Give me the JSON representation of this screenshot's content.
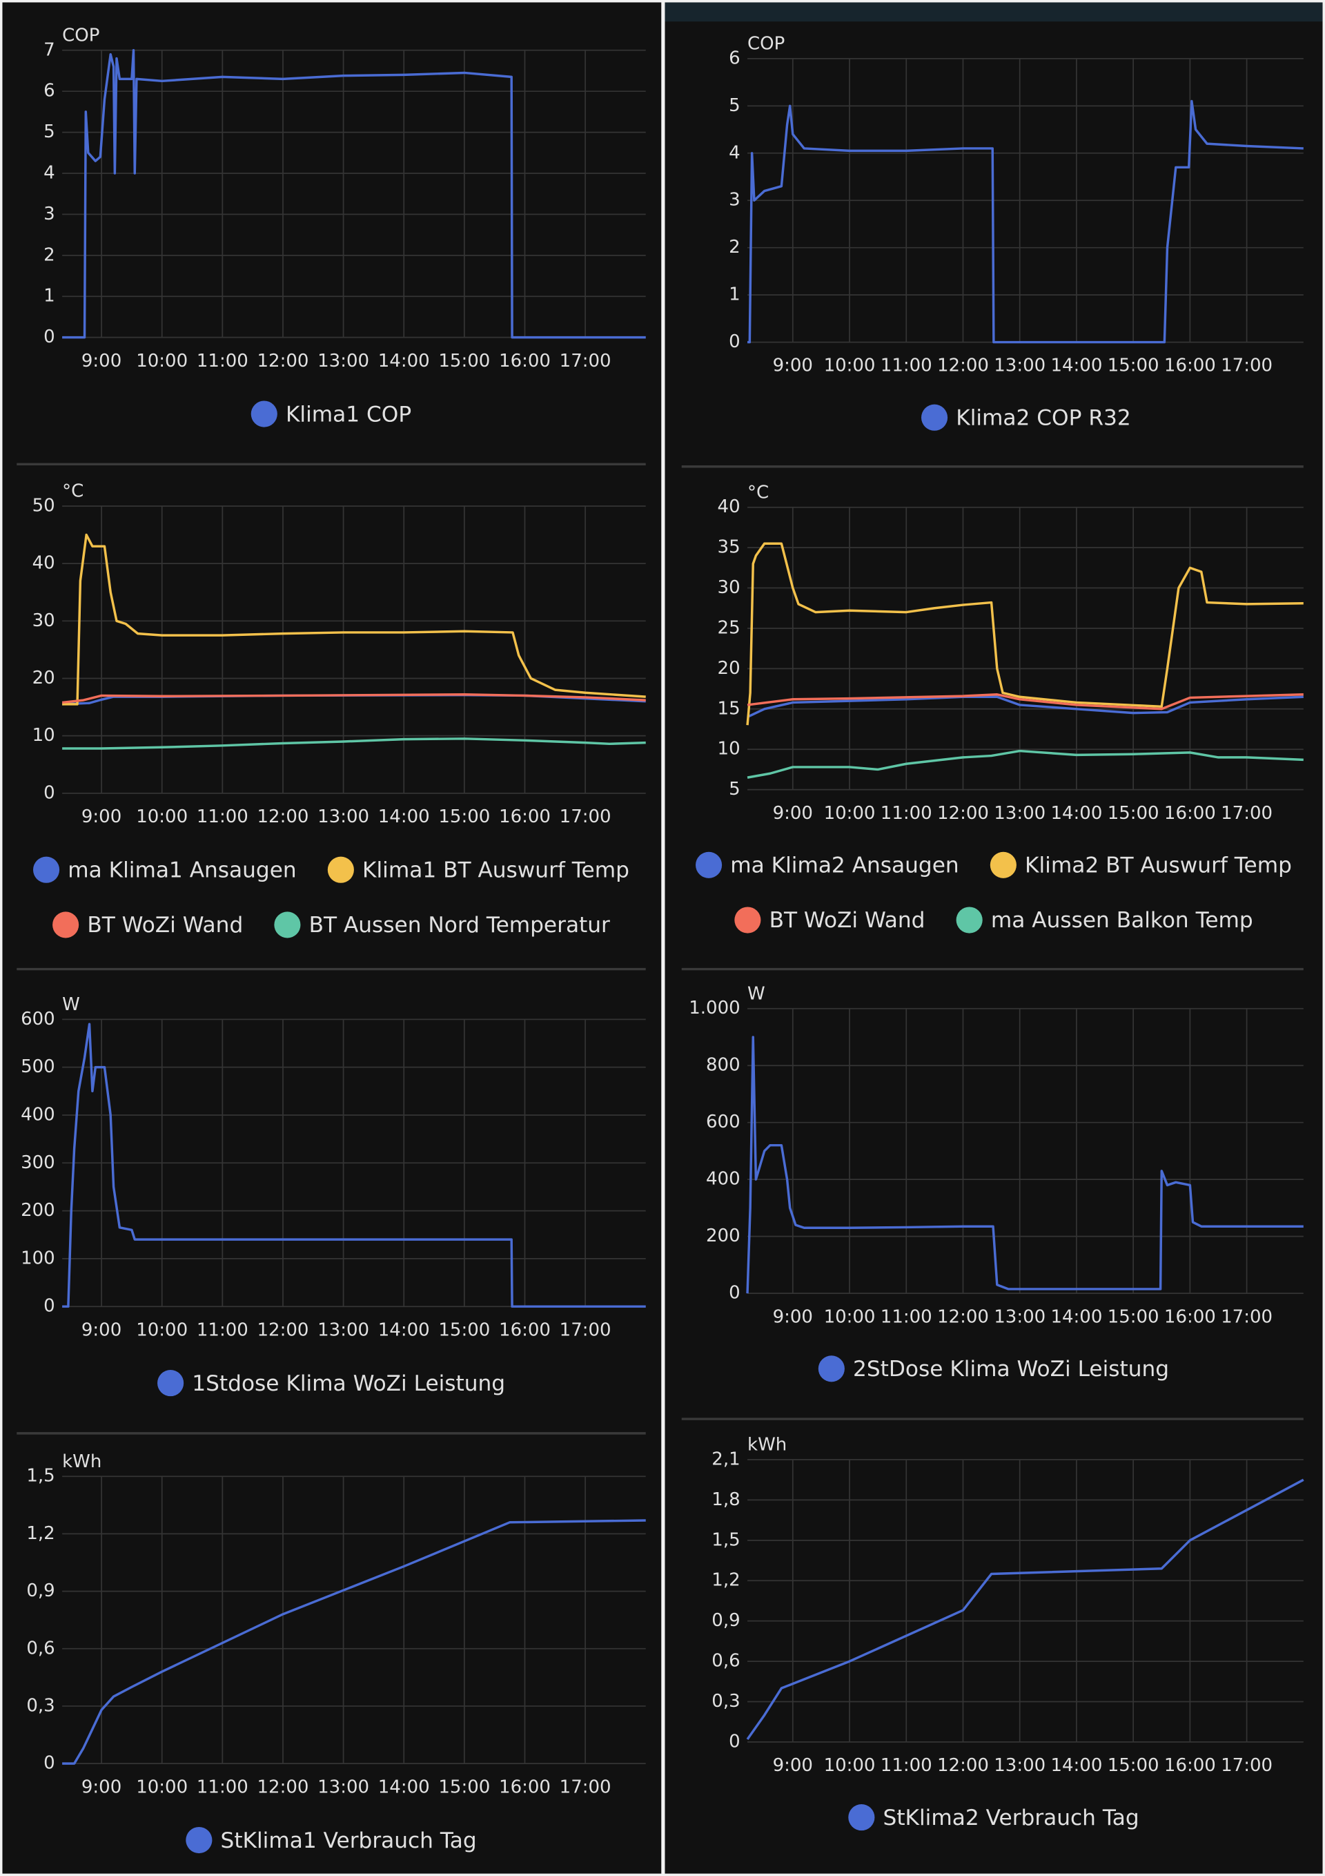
{
  "chart_data": [
    {
      "type": "line",
      "ylabel": "COP",
      "grid": true,
      "xlim": [
        8.35,
        18.0
      ],
      "ylim": [
        0,
        7
      ],
      "xticks": [
        {
          "value": 9,
          "label": "9:00"
        },
        {
          "value": 10,
          "label": "10:00"
        },
        {
          "value": 11,
          "label": "11:00"
        },
        {
          "value": 12,
          "label": "12:00"
        },
        {
          "value": 13,
          "label": "13:00"
        },
        {
          "value": 14,
          "label": "14:00"
        },
        {
          "value": 15,
          "label": "15:00"
        },
        {
          "value": 16,
          "label": "16:00"
        },
        {
          "value": 17,
          "label": "17:00"
        }
      ],
      "yticks": [
        0,
        1,
        2,
        3,
        4,
        5,
        6,
        7
      ],
      "series": [
        {
          "name": "Klima1 COP",
          "color": "#4a6cd4",
          "x": [
            8.35,
            8.72,
            8.74,
            8.78,
            8.9,
            8.98,
            9.05,
            9.15,
            9.2,
            9.22,
            9.25,
            9.3,
            9.5,
            9.53,
            9.55,
            9.58,
            10,
            11,
            12,
            13,
            14,
            15,
            15.78,
            15.79,
            18
          ],
          "values": [
            0,
            0,
            5.5,
            4.5,
            4.3,
            4.4,
            5.8,
            6.9,
            6.6,
            4.0,
            6.8,
            6.3,
            6.3,
            7.0,
            4.0,
            6.3,
            6.25,
            6.35,
            6.3,
            6.38,
            6.4,
            6.45,
            6.35,
            0,
            0
          ]
        }
      ]
    },
    {
      "type": "line",
      "ylabel": "COP",
      "grid": true,
      "xlim": [
        8.2,
        18.0
      ],
      "ylim": [
        0,
        6
      ],
      "xticks": [
        {
          "value": 9,
          "label": "9:00"
        },
        {
          "value": 10,
          "label": "10:00"
        },
        {
          "value": 11,
          "label": "11:00"
        },
        {
          "value": 12,
          "label": "12:00"
        },
        {
          "value": 13,
          "label": "13:00"
        },
        {
          "value": 14,
          "label": "14:00"
        },
        {
          "value": 15,
          "label": "15:00"
        },
        {
          "value": 16,
          "label": "16:00"
        },
        {
          "value": 17,
          "label": "17:00"
        }
      ],
      "yticks": [
        0,
        1,
        2,
        3,
        4,
        5,
        6
      ],
      "series": [
        {
          "name": "Klima2 COP R32",
          "color": "#4a6cd4",
          "x": [
            8.2,
            8.24,
            8.28,
            8.32,
            8.5,
            8.8,
            8.9,
            8.95,
            9.0,
            9.2,
            10,
            11,
            12,
            12.52,
            12.54,
            15.55,
            15.6,
            15.75,
            15.98,
            16.03,
            16.1,
            16.3,
            17,
            18
          ],
          "values": [
            0,
            0,
            4.0,
            3.0,
            3.2,
            3.3,
            4.6,
            5.0,
            4.4,
            4.1,
            4.05,
            4.05,
            4.1,
            4.1,
            0,
            0,
            2.0,
            3.7,
            3.7,
            5.1,
            4.5,
            4.2,
            4.15,
            4.1
          ]
        }
      ]
    },
    {
      "type": "line",
      "ylabel": "°C",
      "grid": true,
      "xlim": [
        8.35,
        18.0
      ],
      "ylim": [
        0,
        50
      ],
      "xticks": [
        {
          "value": 9,
          "label": "9:00"
        },
        {
          "value": 10,
          "label": "10:00"
        },
        {
          "value": 11,
          "label": "11:00"
        },
        {
          "value": 12,
          "label": "12:00"
        },
        {
          "value": 13,
          "label": "13:00"
        },
        {
          "value": 14,
          "label": "14:00"
        },
        {
          "value": 15,
          "label": "15:00"
        },
        {
          "value": 16,
          "label": "16:00"
        },
        {
          "value": 17,
          "label": "17:00"
        }
      ],
      "yticks": [
        0,
        10,
        20,
        30,
        40,
        50
      ],
      "series": [
        {
          "name": "ma Klima1 Ansaugen",
          "color": "#4a6cd4",
          "x": [
            8.35,
            8.8,
            9.0,
            9.2,
            10,
            12,
            15,
            16,
            17,
            18
          ],
          "values": [
            15.5,
            15.7,
            16.3,
            16.8,
            16.8,
            17,
            17.1,
            17,
            16.5,
            16
          ]
        },
        {
          "name": "Klima1 BT Auswurf Temp",
          "color": "#f3c14b",
          "x": [
            8.35,
            8.6,
            8.65,
            8.75,
            8.85,
            9.05,
            9.15,
            9.25,
            9.4,
            9.6,
            10,
            11,
            12,
            13,
            14,
            15,
            15.8,
            15.9,
            16.1,
            16.5,
            17,
            18
          ],
          "values": [
            15.5,
            15.5,
            37,
            45,
            43,
            43,
            35,
            30,
            29.5,
            27.8,
            27.5,
            27.5,
            27.8,
            28,
            28,
            28.2,
            28,
            24,
            20,
            18,
            17.5,
            16.8
          ]
        },
        {
          "name": "BT WoZi Wand",
          "color": "#f26e5a",
          "x": [
            8.35,
            8.7,
            9,
            10,
            12,
            15,
            16,
            17,
            18
          ],
          "values": [
            15.8,
            16.2,
            17,
            16.9,
            17,
            17.2,
            17,
            16.7,
            16.2
          ]
        },
        {
          "name": "BT Aussen Nord Temperatur",
          "color": "#5fc6a6",
          "x": [
            8.35,
            9,
            10,
            11,
            12,
            13,
            14,
            15,
            16,
            17,
            17.4,
            18
          ],
          "values": [
            7.8,
            7.8,
            8,
            8.3,
            8.7,
            9,
            9.4,
            9.5,
            9.2,
            8.8,
            8.6,
            8.8
          ]
        }
      ]
    },
    {
      "type": "line",
      "ylabel": "°C",
      "grid": true,
      "xlim": [
        8.2,
        18.0
      ],
      "ylim": [
        5,
        40
      ],
      "xticks": [
        {
          "value": 9,
          "label": "9:00"
        },
        {
          "value": 10,
          "label": "10:00"
        },
        {
          "value": 11,
          "label": "11:00"
        },
        {
          "value": 12,
          "label": "12:00"
        },
        {
          "value": 13,
          "label": "13:00"
        },
        {
          "value": 14,
          "label": "14:00"
        },
        {
          "value": 15,
          "label": "15:00"
        },
        {
          "value": 16,
          "label": "16:00"
        },
        {
          "value": 17,
          "label": "17:00"
        }
      ],
      "yticks": [
        5,
        10,
        15,
        20,
        25,
        30,
        35,
        40
      ],
      "series": [
        {
          "name": "ma Klima2 Ansaugen",
          "color": "#4a6cd4",
          "x": [
            8.2,
            8.5,
            9,
            10,
            11,
            12,
            12.6,
            13,
            14,
            15,
            15.6,
            16,
            17,
            18
          ],
          "values": [
            14,
            15,
            15.8,
            16,
            16.2,
            16.5,
            16.5,
            15.5,
            15,
            14.5,
            14.6,
            15.8,
            16.2,
            16.5
          ]
        },
        {
          "name": "Klima2 BT Auswurf Temp",
          "color": "#f3c14b",
          "x": [
            8.2,
            8.25,
            8.3,
            8.35,
            8.5,
            8.8,
            9.0,
            9.1,
            9.4,
            10,
            11,
            11.5,
            12,
            12.5,
            12.6,
            12.7,
            13,
            14,
            15.5,
            15.6,
            15.8,
            16.0,
            16.2,
            16.3,
            17,
            18
          ],
          "values": [
            13,
            17,
            33,
            34,
            35.5,
            35.5,
            30,
            28,
            27,
            27.2,
            27,
            27.5,
            27.9,
            28.2,
            20,
            17,
            16.5,
            15.8,
            15.3,
            20,
            30,
            32.5,
            32,
            28.2,
            28,
            28.1
          ]
        },
        {
          "name": "BT WoZi Wand",
          "color": "#f26e5a",
          "x": [
            8.2,
            9,
            10,
            12,
            12.6,
            13,
            14,
            15.5,
            16,
            17,
            18
          ],
          "values": [
            15.5,
            16.2,
            16.3,
            16.6,
            16.8,
            16.2,
            15.5,
            15,
            16.4,
            16.6,
            16.8
          ]
        },
        {
          "name": "ma Aussen Balkon Temp",
          "color": "#5fc6a6",
          "x": [
            8.2,
            8.6,
            9,
            10,
            10.5,
            11,
            12,
            12.5,
            13,
            14,
            15,
            16,
            16.5,
            17,
            18
          ],
          "values": [
            6.5,
            7,
            7.8,
            7.8,
            7.5,
            8.2,
            9,
            9.2,
            9.8,
            9.3,
            9.4,
            9.6,
            9,
            9,
            8.7
          ]
        }
      ]
    },
    {
      "type": "line",
      "ylabel": "W",
      "grid": true,
      "xlim": [
        8.35,
        18.0
      ],
      "ylim": [
        0,
        600
      ],
      "xticks": [
        {
          "value": 9,
          "label": "9:00"
        },
        {
          "value": 10,
          "label": "10:00"
        },
        {
          "value": 11,
          "label": "11:00"
        },
        {
          "value": 12,
          "label": "12:00"
        },
        {
          "value": 13,
          "label": "13:00"
        },
        {
          "value": 14,
          "label": "14:00"
        },
        {
          "value": 15,
          "label": "15:00"
        },
        {
          "value": 16,
          "label": "16:00"
        },
        {
          "value": 17,
          "label": "17:00"
        }
      ],
      "yticks": [
        0,
        100,
        200,
        300,
        400,
        500,
        600
      ],
      "series": [
        {
          "name": "1Stdose Klima WoZi Leistung",
          "color": "#4a6cd4",
          "x": [
            8.35,
            8.45,
            8.5,
            8.55,
            8.62,
            8.72,
            8.8,
            8.85,
            8.9,
            9.05,
            9.15,
            9.2,
            9.3,
            9.5,
            9.55,
            10,
            12,
            15,
            15.78,
            15.79,
            18
          ],
          "values": [
            0,
            0,
            200,
            330,
            450,
            520,
            590,
            450,
            500,
            500,
            400,
            250,
            165,
            160,
            140,
            140,
            140,
            140,
            140,
            0,
            0
          ]
        }
      ]
    },
    {
      "type": "line",
      "ylabel": "W",
      "grid": true,
      "xlim": [
        8.2,
        18.0
      ],
      "ylim": [
        0,
        1000
      ],
      "xticks": [
        {
          "value": 9,
          "label": "9:00"
        },
        {
          "value": 10,
          "label": "10:00"
        },
        {
          "value": 11,
          "label": "11:00"
        },
        {
          "value": 12,
          "label": "12:00"
        },
        {
          "value": 13,
          "label": "13:00"
        },
        {
          "value": 14,
          "label": "14:00"
        },
        {
          "value": 15,
          "label": "15:00"
        },
        {
          "value": 16,
          "label": "16:00"
        },
        {
          "value": 17,
          "label": "17:00"
        }
      ],
      "yticks": [
        0,
        200,
        400,
        600,
        800,
        {
          "value": 1000,
          "label": "1.000"
        }
      ],
      "series": [
        {
          "name": "2StDose Klima WoZi Leistung",
          "color": "#4a6cd4",
          "x": [
            8.2,
            8.25,
            8.3,
            8.35,
            8.5,
            8.6,
            8.8,
            8.9,
            8.95,
            9.05,
            9.2,
            10,
            11,
            12,
            12.53,
            12.6,
            12.8,
            13,
            14,
            15.48,
            15.5,
            15.6,
            15.75,
            16,
            16.05,
            16.2,
            17,
            18
          ],
          "values": [
            0,
            300,
            900,
            400,
            500,
            520,
            520,
            400,
            300,
            240,
            230,
            230,
            232,
            235,
            235,
            30,
            15,
            15,
            15,
            15,
            430,
            380,
            390,
            380,
            250,
            235,
            235,
            235
          ]
        }
      ]
    },
    {
      "type": "line",
      "ylabel": "kWh",
      "grid": true,
      "xlim": [
        8.35,
        18.0
      ],
      "ylim": [
        0,
        1.5
      ],
      "xticks": [
        {
          "value": 9,
          "label": "9:00"
        },
        {
          "value": 10,
          "label": "10:00"
        },
        {
          "value": 11,
          "label": "11:00"
        },
        {
          "value": 12,
          "label": "12:00"
        },
        {
          "value": 13,
          "label": "13:00"
        },
        {
          "value": 14,
          "label": "14:00"
        },
        {
          "value": 15,
          "label": "15:00"
        },
        {
          "value": 16,
          "label": "16:00"
        },
        {
          "value": 17,
          "label": "17:00"
        }
      ],
      "yticks": [
        0,
        {
          "value": 0.3,
          "label": "0,3"
        },
        {
          "value": 0.6,
          "label": "0,6"
        },
        {
          "value": 0.9,
          "label": "0,9"
        },
        {
          "value": 1.2,
          "label": "1,2"
        },
        {
          "value": 1.5,
          "label": "1,5"
        }
      ],
      "series": [
        {
          "name": "StKlima1 Verbrauch Tag",
          "color": "#4a6cd4",
          "x": [
            8.35,
            8.55,
            8.7,
            9.0,
            9.2,
            9.5,
            10,
            12,
            14,
            15.75,
            18
          ],
          "values": [
            0,
            0,
            0.08,
            0.28,
            0.35,
            0.4,
            0.48,
            0.78,
            1.03,
            1.26,
            1.27
          ]
        }
      ]
    },
    {
      "type": "line",
      "ylabel": "kWh",
      "grid": true,
      "xlim": [
        8.2,
        18.0
      ],
      "ylim": [
        0,
        2.1
      ],
      "xticks": [
        {
          "value": 9,
          "label": "9:00"
        },
        {
          "value": 10,
          "label": "10:00"
        },
        {
          "value": 11,
          "label": "11:00"
        },
        {
          "value": 12,
          "label": "12:00"
        },
        {
          "value": 13,
          "label": "13:00"
        },
        {
          "value": 14,
          "label": "14:00"
        },
        {
          "value": 15,
          "label": "15:00"
        },
        {
          "value": 16,
          "label": "16:00"
        },
        {
          "value": 17,
          "label": "17:00"
        }
      ],
      "yticks": [
        0,
        {
          "value": 0.3,
          "label": "0,3"
        },
        {
          "value": 0.6,
          "label": "0,6"
        },
        {
          "value": 0.9,
          "label": "0,9"
        },
        {
          "value": 1.2,
          "label": "1,2"
        },
        {
          "value": 1.5,
          "label": "1,5"
        },
        {
          "value": 1.8,
          "label": "1,8"
        },
        {
          "value": 2.1,
          "label": "2,1"
        }
      ],
      "series": [
        {
          "name": "StKlima2 Verbrauch Tag",
          "color": "#4a6cd4",
          "x": [
            8.2,
            8.5,
            8.8,
            10,
            12,
            12.5,
            15.5,
            16,
            18
          ],
          "values": [
            0.02,
            0.2,
            0.4,
            0.6,
            0.98,
            1.25,
            1.29,
            1.5,
            1.95
          ]
        }
      ]
    }
  ]
}
